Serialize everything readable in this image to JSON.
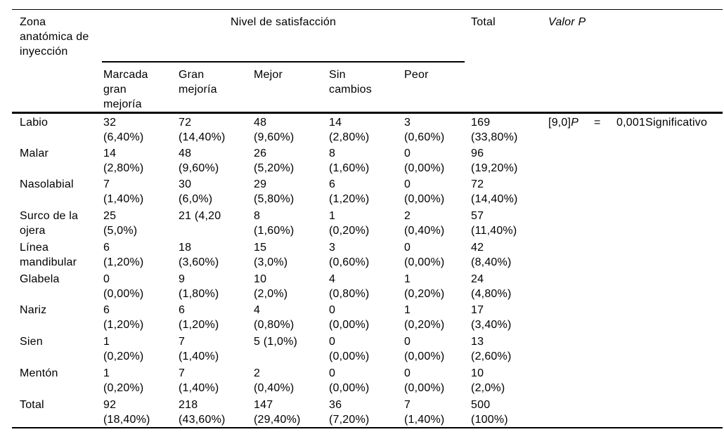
{
  "document": {
    "language": "es",
    "background": "#ffffff",
    "text_color": "#000000",
    "rule_color": "#000000"
  },
  "table": {
    "header": {
      "zona": "Zona\nanatómica de\ninyección",
      "nivel": "Nivel de satisfacción",
      "total": "Total",
      "valor_p": "Valor P"
    },
    "sub_headers": [
      "Marcada\ngran\nmejoría",
      "Gran\nmejoría",
      "Mejor",
      "Sin\ncambios",
      "Peor"
    ],
    "p_cell": {
      "prefix": "[9,0]",
      "symbol": "P",
      "equals": "=",
      "value": "0,001",
      "verdict": "Significativo"
    },
    "rows": [
      {
        "zona": "Labio",
        "cells": [
          [
            "32",
            "(6,40%)"
          ],
          [
            "72",
            "(14,40%)"
          ],
          [
            "48",
            "(9,60%)"
          ],
          [
            "14",
            "(2,80%)"
          ],
          [
            "3",
            "(0,60%)"
          ],
          [
            "169",
            "(33,80%)"
          ]
        ]
      },
      {
        "zona": "Malar",
        "cells": [
          [
            "14",
            "(2,80%)"
          ],
          [
            "48",
            "(9,60%)"
          ],
          [
            "26",
            "(5,20%)"
          ],
          [
            "8",
            "(1,60%)"
          ],
          [
            "0",
            "(0,00%)"
          ],
          [
            "96",
            "(19,20%)"
          ]
        ]
      },
      {
        "zona": "Nasolabial",
        "cells": [
          [
            "7",
            "(1,40%)"
          ],
          [
            "30",
            "(6,0%)"
          ],
          [
            "29",
            "(5,80%)"
          ],
          [
            "6",
            "(1,20%)"
          ],
          [
            "0",
            "(0,00%)"
          ],
          [
            "72",
            "(14,40%)"
          ]
        ]
      },
      {
        "zona": "Surco de la\nojera",
        "cells": [
          [
            "25",
            "(5,0%)"
          ],
          [
            "21 (4,20",
            ""
          ],
          [
            "8",
            "(1,60%)"
          ],
          [
            "1",
            "(0,20%)"
          ],
          [
            "2",
            "(0,40%)"
          ],
          [
            "57",
            "(11,40%)"
          ]
        ]
      },
      {
        "zona": "Línea\nmandibular",
        "cells": [
          [
            "6",
            "(1,20%)"
          ],
          [
            "18",
            "(3,60%)"
          ],
          [
            "15",
            "(3,0%)"
          ],
          [
            "3",
            "(0,60%)"
          ],
          [
            "0",
            "(0,00%)"
          ],
          [
            "42",
            "(8,40%)"
          ]
        ]
      },
      {
        "zona": "Glabela",
        "cells": [
          [
            "0",
            "(0,00%)"
          ],
          [
            "9",
            "(1,80%)"
          ],
          [
            "10",
            "(2,0%)"
          ],
          [
            "4",
            "(0,80%)"
          ],
          [
            "1",
            "(0,20%)"
          ],
          [
            "24",
            "(4,80%)"
          ]
        ]
      },
      {
        "zona": "Nariz",
        "cells": [
          [
            "6",
            "(1,20%)"
          ],
          [
            "6",
            "(1,20%)"
          ],
          [
            "4",
            "(0,80%)"
          ],
          [
            "0",
            "(0,00%)"
          ],
          [
            "1",
            "(0,20%)"
          ],
          [
            "17",
            "(3,40%)"
          ]
        ]
      },
      {
        "zona": "Sien",
        "cells": [
          [
            "1",
            "(0,20%)"
          ],
          [
            "7",
            "(1,40%)"
          ],
          [
            "5 (1,0%)",
            ""
          ],
          [
            "0",
            "(0,00%)"
          ],
          [
            "0",
            "(0,00%)"
          ],
          [
            "13",
            "(2,60%)"
          ]
        ]
      },
      {
        "zona": "Mentón",
        "cells": [
          [
            "1",
            "(0,20%)"
          ],
          [
            "7",
            "(1,40%)"
          ],
          [
            "2",
            "(0,40%)"
          ],
          [
            "0",
            "(0,00%)"
          ],
          [
            "0",
            "(0,00%)"
          ],
          [
            "10",
            "(2,0%)"
          ]
        ]
      },
      {
        "zona": "Total",
        "cells": [
          [
            "92",
            "(18,40%)"
          ],
          [
            "218",
            "(43,60%)"
          ],
          [
            "147",
            "(29,40%)"
          ],
          [
            "36",
            "(7,20%)"
          ],
          [
            "7",
            "(1,40%)"
          ],
          [
            "500",
            "(100%)"
          ]
        ]
      }
    ]
  }
}
